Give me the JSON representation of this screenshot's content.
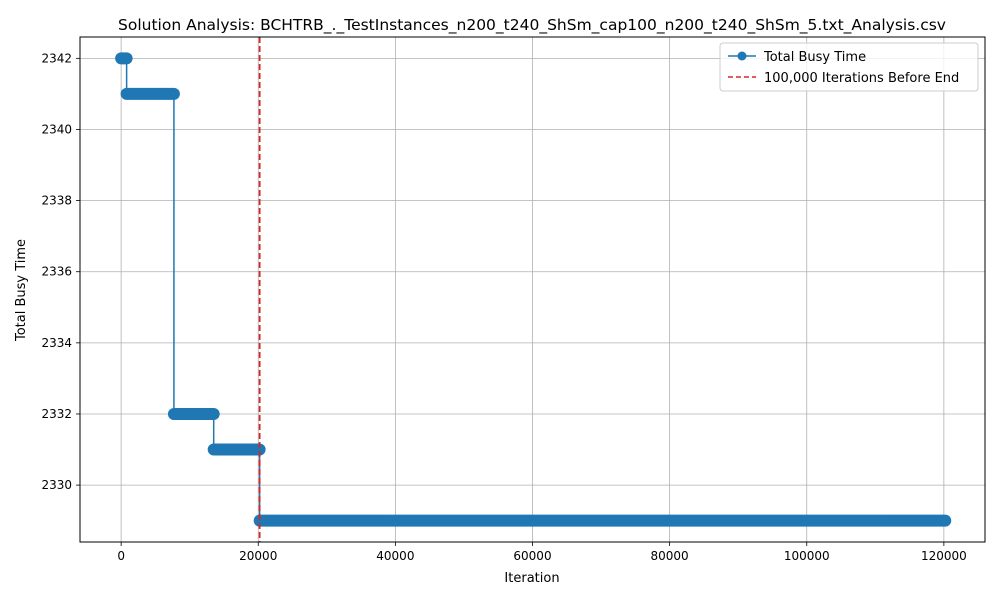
{
  "chart_data": {
    "type": "line",
    "title": "Solution Analysis: BCHTRB_._TestInstances_n200_t240_ShSm_cap100_n200_t240_ShSm_5.txt_Analysis.csv",
    "xlabel": "Iteration",
    "ylabel": "Total Busy Time",
    "xlim": [
      -6000,
      126000
    ],
    "ylim": [
      2328.4,
      2342.6
    ],
    "xticks": [
      0,
      20000,
      40000,
      60000,
      80000,
      100000,
      120000
    ],
    "xtick_labels": [
      "0",
      "20000",
      "40000",
      "60000",
      "80000",
      "100000",
      "120000"
    ],
    "yticks": [
      2330,
      2332,
      2334,
      2336,
      2338,
      2340,
      2342
    ],
    "ytick_labels": [
      "2330",
      "2332",
      "2334",
      "2336",
      "2338",
      "2340",
      "2342"
    ],
    "grid": true,
    "legend_position": "top-right",
    "series": [
      {
        "name": "Total Busy Time",
        "color": "#1f77b4",
        "marker": "circle",
        "segments": [
          {
            "x_start": 0,
            "x_end": 800,
            "y": 2342
          },
          {
            "x_start": 800,
            "x_end": 7700,
            "y": 2341
          },
          {
            "x_start": 7700,
            "x_end": 13500,
            "y": 2332
          },
          {
            "x_start": 13500,
            "x_end": 20200,
            "y": 2331
          },
          {
            "x_start": 20200,
            "x_end": 120200,
            "y": 2329
          }
        ]
      }
    ],
    "vlines": [
      {
        "name": "100,000 Iterations Before End",
        "x": 20200,
        "color": "#d62728",
        "style": "dashed"
      }
    ]
  }
}
